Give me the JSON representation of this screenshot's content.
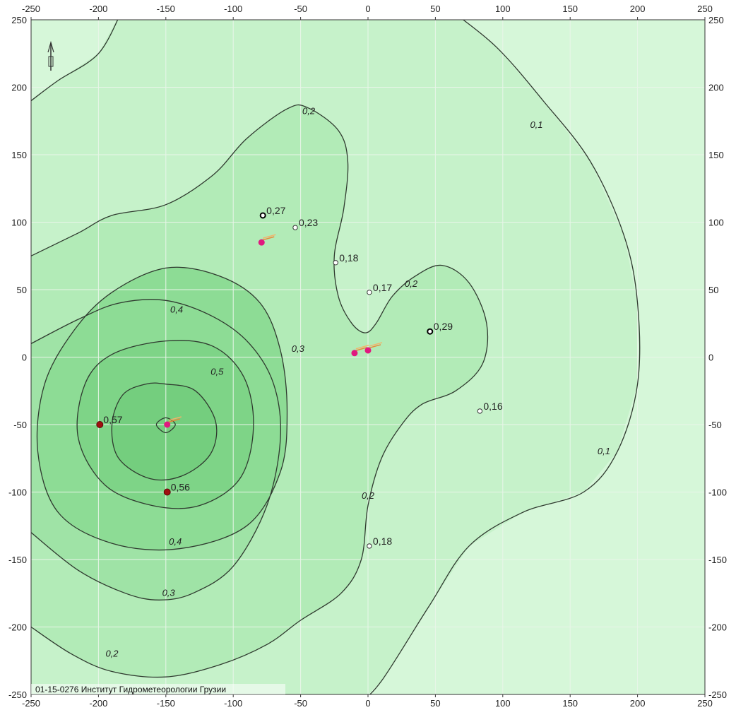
{
  "chart_data": {
    "type": "contour",
    "title": "",
    "xlabel": "",
    "ylabel": "",
    "xlim": [
      -250,
      250
    ],
    "ylim": [
      -250,
      250
    ],
    "grid": true,
    "x_ticks": [
      "-250",
      "-200",
      "-150",
      "-100",
      "-50",
      "0",
      "50",
      "100",
      "150",
      "200",
      "250"
    ],
    "y_ticks": [
      "250",
      "200",
      "150",
      "100",
      "50",
      "0",
      "-50",
      "-100",
      "-150",
      "-200",
      "-250"
    ],
    "contour_levels": [
      "0,1",
      "0,2",
      "0,3",
      "0,4",
      "0,5"
    ],
    "contour_labels": [
      {
        "text": "0,1",
        "x": 125,
        "y": 170
      },
      {
        "text": "0,1",
        "x": 175,
        "y": -72
      },
      {
        "text": "0,2",
        "x": -44,
        "y": 180
      },
      {
        "text": "0,2",
        "x": 32,
        "y": 52
      },
      {
        "text": "0,2",
        "x": 0,
        "y": -105
      },
      {
        "text": "0,2",
        "x": -190,
        "y": -222
      },
      {
        "text": "0,3",
        "x": -52,
        "y": 4
      },
      {
        "text": "0,3",
        "x": -148,
        "y": -177
      },
      {
        "text": "0,4",
        "x": -142,
        "y": 33
      },
      {
        "text": "0,4",
        "x": -143,
        "y": -139
      },
      {
        "text": "0,5",
        "x": -112,
        "y": -13
      }
    ],
    "points": [
      {
        "label": "0,27",
        "x": -78,
        "y": 105,
        "style": "open-black"
      },
      {
        "label": "0,23",
        "x": -54,
        "y": 96,
        "style": "open"
      },
      {
        "label": "0,18",
        "x": -24,
        "y": 70,
        "style": "open"
      },
      {
        "label": "0,17",
        "x": 1,
        "y": 48,
        "style": "open"
      },
      {
        "label": "0,29",
        "x": 46,
        "y": 19,
        "style": "open-black"
      },
      {
        "label": "0,16",
        "x": 83,
        "y": -40,
        "style": "open"
      },
      {
        "label": "0,18",
        "x": 1,
        "y": -140,
        "style": "open"
      },
      {
        "label": "0,57",
        "x": -199,
        "y": -50,
        "style": "filled-red"
      },
      {
        "label": "0,56",
        "x": -149,
        "y": -100,
        "style": "filled-red"
      }
    ],
    "sources": [
      {
        "x": -79,
        "y": 85
      },
      {
        "x": -149,
        "y": -50
      },
      {
        "x": -10,
        "y": 3
      },
      {
        "x": 0,
        "y": 5
      }
    ],
    "colors": {
      "outer": "#d6f7d9",
      "level_0_1": "#c6f2ca",
      "level_0_2": "#b2ebb7",
      "level_0_3": "#9fe3a6",
      "level_0_4": "#8ddc95",
      "level_0_5": "#7ed487",
      "contour_line": "#2f3a2f",
      "grid": "#e9f5e9",
      "source": "#e0197f"
    },
    "footer_text": "01-15-0276 Институт Гидрометеорологии Грузии"
  }
}
